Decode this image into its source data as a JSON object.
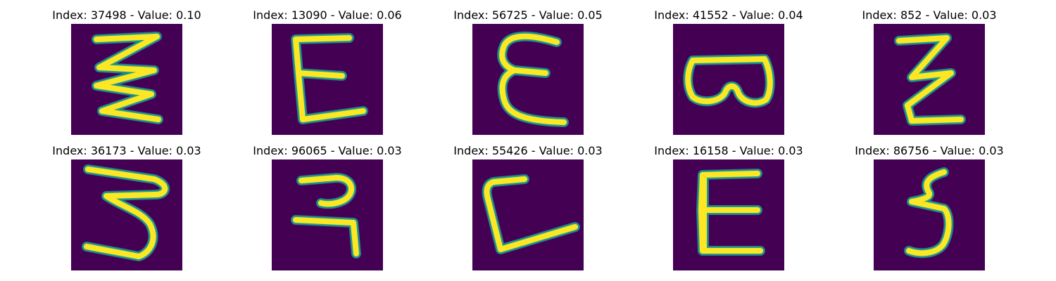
{
  "colors": {
    "background": "#440154",
    "edge": "#2a788e",
    "mid": "#21a585",
    "glyph": "#fde725"
  },
  "panels": [
    {
      "title": "Index: 37498 - Value: 0.10",
      "index": 37498,
      "value": 0.1,
      "glyph": "zigzag-3-stroke"
    },
    {
      "title": "Index: 13090 - Value: 0.06",
      "index": 13090,
      "value": 0.06,
      "glyph": "angular-E"
    },
    {
      "title": "Index: 56725 - Value: 0.05",
      "index": 56725,
      "value": 0.05,
      "glyph": "rounded-E"
    },
    {
      "title": "Index: 41552 - Value: 0.04",
      "index": 41552,
      "value": 0.04,
      "glyph": "rotated-B"
    },
    {
      "title": "Index: 852 - Value: 0.03",
      "index": 852,
      "value": 0.03,
      "glyph": "zigzag-narrow"
    },
    {
      "title": "Index: 36173 - Value: 0.03",
      "index": 36173,
      "value": 0.03,
      "glyph": "three-like"
    },
    {
      "title": "Index: 96065 - Value: 0.03",
      "index": 96065,
      "value": 0.03,
      "glyph": "hindi-ra"
    },
    {
      "title": "Index: 55426 - Value: 0.03",
      "index": 55426,
      "value": 0.03,
      "glyph": "L-shape"
    },
    {
      "title": "Index: 16158 - Value: 0.03",
      "index": 16158,
      "value": 0.03,
      "glyph": "block-E"
    },
    {
      "title": "Index: 86756 - Value: 0.03",
      "index": 86756,
      "value": 0.03,
      "glyph": "small-3"
    }
  ]
}
